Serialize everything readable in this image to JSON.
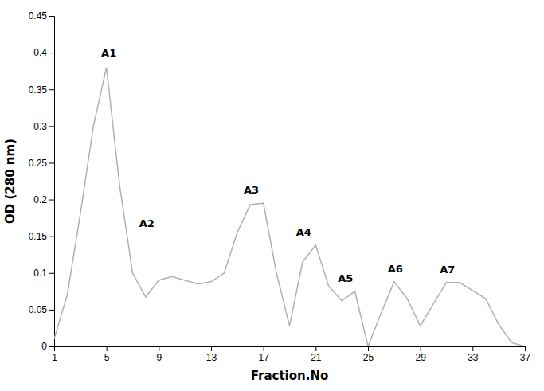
{
  "chart_data": {
    "type": "line",
    "x": [
      1,
      2,
      3,
      4,
      5,
      6,
      7,
      8,
      9,
      10,
      11,
      12,
      13,
      14,
      15,
      16,
      17,
      18,
      19,
      20,
      21,
      22,
      23,
      24,
      25,
      26,
      27,
      28,
      29,
      30,
      31,
      32,
      33,
      34,
      35,
      36,
      37
    ],
    "values": [
      0.01,
      0.07,
      0.18,
      0.3,
      0.38,
      0.22,
      0.1,
      0.067,
      0.09,
      0.095,
      0.09,
      0.085,
      0.088,
      0.1,
      0.155,
      0.193,
      0.195,
      0.1,
      0.028,
      0.115,
      0.138,
      0.082,
      0.062,
      0.075,
      0.0,
      0.045,
      0.088,
      0.065,
      0.028,
      0.058,
      0.087,
      0.087,
      0.076,
      0.065,
      0.03,
      0.005,
      0.0
    ],
    "color": "#b0b0b0",
    "x_label": "Fraction.No",
    "y_label": "OD (280 nm)",
    "xlim": [
      1,
      37
    ],
    "ylim": [
      0,
      0.45
    ],
    "xticks": [
      1,
      5,
      9,
      13,
      17,
      21,
      25,
      29,
      33,
      37
    ],
    "yticks": [
      0,
      0.05,
      0.1,
      0.15,
      0.2,
      0.25,
      0.3,
      0.35,
      0.4,
      0.45
    ],
    "grid": false,
    "annotations": [
      {
        "text": "A1",
        "x": 4.6,
        "y": 0.395
      },
      {
        "text": "A2",
        "x": 7.5,
        "y": 0.163
      },
      {
        "text": "A3",
        "x": 15.5,
        "y": 0.208
      },
      {
        "text": "A4",
        "x": 19.5,
        "y": 0.151
      },
      {
        "text": "A5",
        "x": 22.7,
        "y": 0.088
      },
      {
        "text": "A6",
        "x": 26.5,
        "y": 0.101
      },
      {
        "text": "A7",
        "x": 30.5,
        "y": 0.1
      }
    ]
  }
}
